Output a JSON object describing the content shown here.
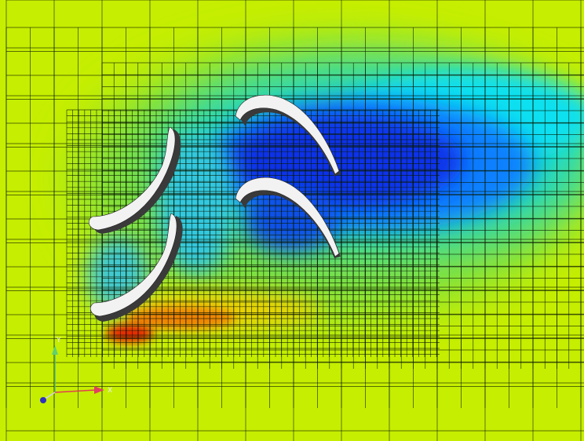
{
  "axes_triad": {
    "x_label": "X",
    "y_label": "Y"
  }
}
